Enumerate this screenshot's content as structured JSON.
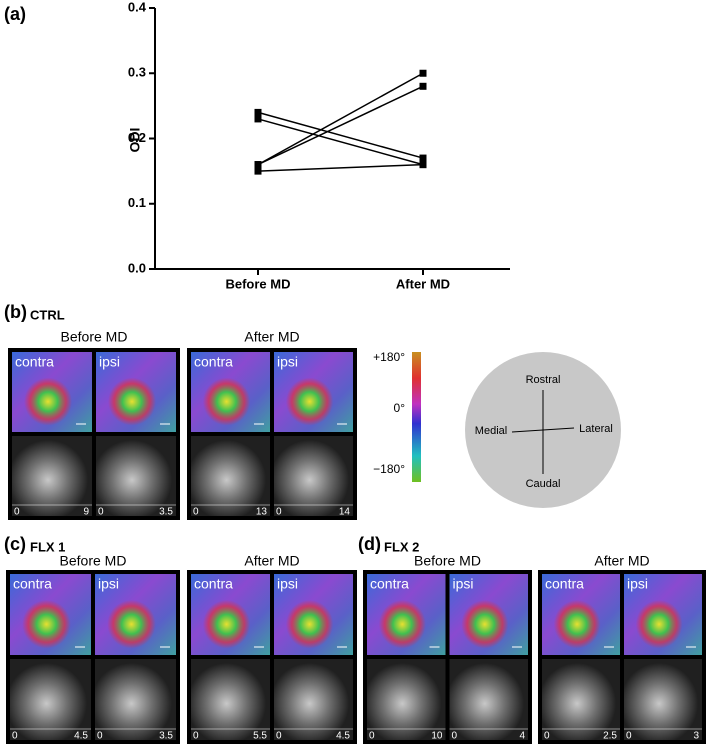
{
  "chart_data": {
    "type": "line",
    "label": "(a)",
    "ylabel": "ODI",
    "categories": [
      "Before MD",
      "After MD"
    ],
    "series": [
      {
        "values": [
          0.24,
          0.17
        ]
      },
      {
        "values": [
          0.23,
          0.16
        ]
      },
      {
        "values": [
          0.16,
          0.3
        ]
      },
      {
        "values": [
          0.16,
          0.28
        ]
      },
      {
        "values": [
          0.15,
          0.16
        ]
      }
    ],
    "color": "#000000",
    "ylim": [
      0,
      0.4
    ],
    "yticks": [
      {
        "value": 0,
        "label": "0.0"
      },
      0.1,
      0.2,
      0.3,
      0.4
    ]
  },
  "panels": [
    {
      "label": "(b)",
      "name": "CTRL",
      "groups": [
        {
          "title": "Before MD",
          "images": [
            {
              "label": "contra",
              "scale": [
                0,
                9
              ]
            },
            {
              "label": "ipsi",
              "scale": [
                0,
                3.5
              ]
            }
          ]
        },
        {
          "title": "After MD",
          "images": [
            {
              "label": "contra",
              "scale": [
                0,
                13
              ]
            },
            {
              "label": "ipsi",
              "scale": [
                0,
                14
              ]
            }
          ]
        }
      ]
    },
    {
      "label": "(c)",
      "name": "FLX 1",
      "groups": [
        {
          "title": "Before MD",
          "images": [
            {
              "label": "contra",
              "scale": [
                0,
                4.5
              ]
            },
            {
              "label": "ipsi",
              "scale": [
                0,
                3.5
              ]
            }
          ]
        },
        {
          "title": "After MD",
          "images": [
            {
              "label": "contra",
              "scale": [
                0,
                5.5
              ]
            },
            {
              "label": "ipsi",
              "scale": [
                0,
                4.5
              ]
            }
          ]
        }
      ]
    },
    {
      "label": "(d)",
      "name": "FLX 2",
      "groups": [
        {
          "title": "Before MD",
          "images": [
            {
              "label": "contra",
              "scale": [
                0,
                10
              ]
            },
            {
              "label": "ipsi",
              "scale": [
                0,
                4
              ]
            }
          ]
        },
        {
          "title": "After MD",
          "images": [
            {
              "label": "contra",
              "scale": [
                0,
                2.5
              ]
            },
            {
              "label": "ipsi",
              "scale": [
                0,
                3
              ]
            }
          ]
        }
      ]
    }
  ],
  "colorbar": {
    "labels": [
      "+180°",
      "0°",
      "−180°"
    ]
  },
  "orientation": {
    "top": "Rostral",
    "left": "Medial",
    "right": "Lateral",
    "bottom": "Caudal"
  }
}
